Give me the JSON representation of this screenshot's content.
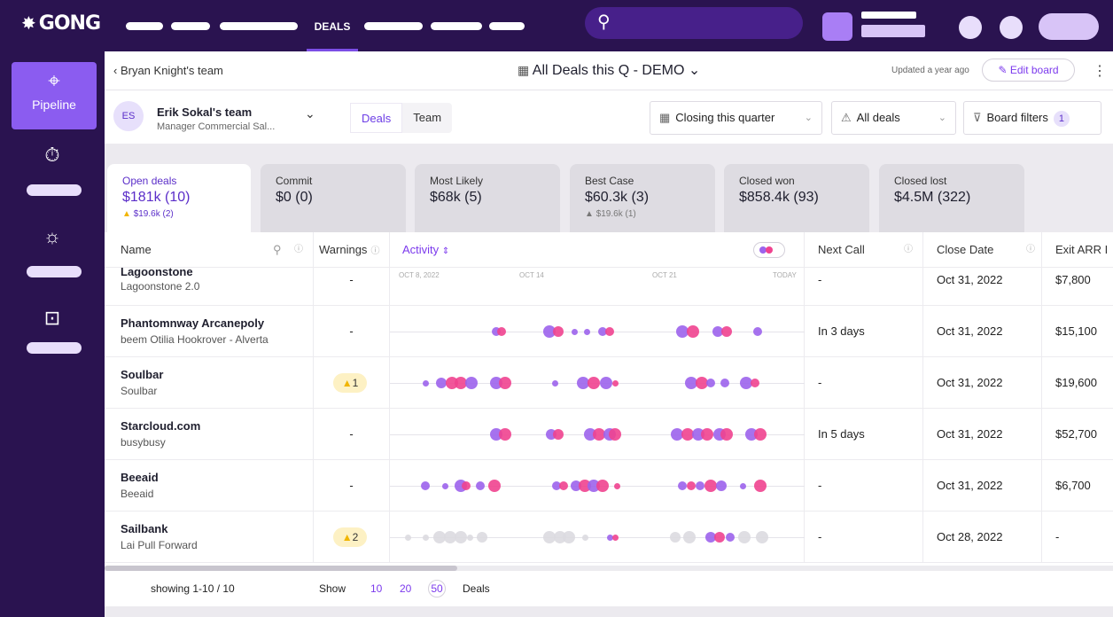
{
  "app": {
    "logo": "GONG",
    "nav_active": "DEALS"
  },
  "colors": {
    "brand_dark": "#2a1350",
    "accent": "#7c3aed",
    "purple_dot": "#9c63ec",
    "pink_dot": "#f0428f",
    "grey_dot": "#dcdae0"
  },
  "sidebar": {
    "active_label": "Pipeline"
  },
  "header": {
    "back_link": "Bryan Knight's team",
    "board_title": "All Deals this Q - DEMO",
    "updated": "Updated a year ago",
    "edit_board": "Edit board"
  },
  "team": {
    "initials": "ES",
    "name": "Erik Sokal's team",
    "subtitle": "Manager Commercial Sal...",
    "toggle": [
      "Deals",
      "Team"
    ]
  },
  "filters": {
    "closing": "Closing this quarter",
    "all_deals": "All deals",
    "board_filters": "Board filters",
    "board_filters_count": "1"
  },
  "summary_cards": [
    {
      "title": "Open deals",
      "value": "$181k (10)",
      "warning": "$19.6k (2)"
    },
    {
      "title": "Commit",
      "value": "$0 (0)",
      "warning": ""
    },
    {
      "title": "Most Likely",
      "value": "$68k (5)",
      "warning": ""
    },
    {
      "title": "Best Case",
      "value": "$60.3k (3)",
      "warning": "$19.6k (1)"
    },
    {
      "title": "Closed won",
      "value": "$858.4k (93)",
      "warning": ""
    },
    {
      "title": "Closed lost",
      "value": "$4.5M (322)",
      "warning": ""
    }
  ],
  "columns": {
    "name": "Name",
    "warnings": "Warnings",
    "activity": "Activity",
    "next_call": "Next Call",
    "close_date": "Close Date",
    "exit_arr": "Exit ARR I"
  },
  "activity_axis": [
    "OCT 8, 2022",
    "OCT 14",
    "OCT 21",
    "TODAY"
  ],
  "rows": [
    {
      "name": "Lagoonstone",
      "sub": "Lagoonstone 2.0",
      "warnings": "-",
      "next_call": "-",
      "close_date": "Oct 31, 2022",
      "arr": "$7,800"
    },
    {
      "name": "Phantomnway Arcanepoly",
      "sub": "beem Otilia Hookrover - Alverta",
      "warnings": "-",
      "next_call": "In 3 days",
      "close_date": "Oct 31, 2022",
      "arr": "$15,100"
    },
    {
      "name": "Soulbar",
      "sub": "Soulbar",
      "warnings": "1",
      "next_call": "-",
      "close_date": "Oct 31, 2022",
      "arr": "$19,600"
    },
    {
      "name": "Starcloud.com",
      "sub": "busybusy",
      "warnings": "-",
      "next_call": "In 5 days",
      "close_date": "Oct 31, 2022",
      "arr": "$52,700"
    },
    {
      "name": "Beeaid",
      "sub": "Beeaid",
      "warnings": "-",
      "next_call": "-",
      "close_date": "Oct 31, 2022",
      "arr": "$6,700"
    },
    {
      "name": "Sailbank",
      "sub": "Lai Pull Forward",
      "warnings": "2",
      "next_call": "-",
      "close_date": "Oct 28, 2022",
      "arr": "-"
    }
  ],
  "footer": {
    "showing": "showing 1-10 / 10",
    "show": "Show",
    "sizes": [
      "10",
      "20",
      "50"
    ],
    "deals": "Deals"
  }
}
